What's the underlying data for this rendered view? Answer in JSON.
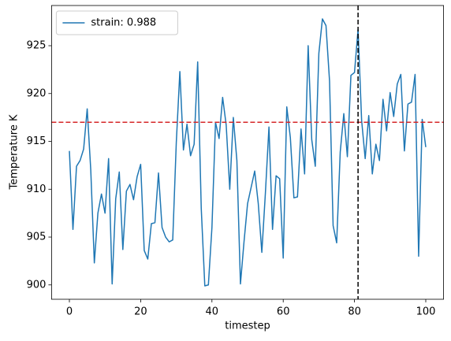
{
  "chart_data": {
    "type": "line",
    "xlabel": "timestep",
    "ylabel": "Temperature K",
    "x": [
      0,
      1,
      2,
      3,
      4,
      5,
      6,
      7,
      8,
      9,
      10,
      11,
      12,
      13,
      14,
      15,
      16,
      17,
      18,
      19,
      20,
      21,
      22,
      23,
      24,
      25,
      26,
      27,
      28,
      29,
      30,
      31,
      32,
      33,
      34,
      35,
      36,
      37,
      38,
      39,
      40,
      41,
      42,
      43,
      44,
      45,
      46,
      47,
      48,
      49,
      50,
      51,
      52,
      53,
      54,
      55,
      56,
      57,
      58,
      59,
      60,
      61,
      62,
      63,
      64,
      65,
      66,
      67,
      68,
      69,
      70,
      71,
      72,
      73,
      74,
      75,
      76,
      77,
      78,
      79,
      80,
      81,
      82,
      83,
      84,
      85,
      86,
      87,
      88,
      89,
      90,
      91,
      92,
      93,
      94,
      95,
      96,
      97,
      98,
      99,
      100
    ],
    "series": [
      {
        "name": "strain: 0.988",
        "color": "#1f77b4",
        "values": [
          914,
          905.8,
          912.4,
          913,
          914.2,
          918.4,
          912,
          902.3,
          907.5,
          909.5,
          907.5,
          913.2,
          900.1,
          909,
          911.8,
          903.7,
          909.8,
          910.5,
          908.9,
          911.3,
          912.6,
          903.6,
          902.7,
          906.4,
          906.5,
          911.7,
          906,
          905,
          904.5,
          904.7,
          914.9,
          922.3,
          914.1,
          916.8,
          913.5,
          914.7,
          923.3,
          908,
          899.9,
          900,
          906,
          917,
          915.3,
          919.6,
          916.7,
          910,
          917.5,
          913,
          900.1,
          904.5,
          908.5,
          910.2,
          911.9,
          908.5,
          903.4,
          909.6,
          916.5,
          905.8,
          911.4,
          911.1,
          902.8,
          918.6,
          915.4,
          909.1,
          909.2,
          916.3,
          911.6,
          925,
          915.2,
          912.4,
          924.2,
          927.8,
          927.1,
          921.3,
          906.2,
          904.4,
          913.9,
          917.9,
          913.4,
          921.9,
          922.2,
          926.7,
          917.2,
          913.2,
          917.7,
          911.6,
          914.7,
          913,
          919.4,
          916.1,
          920.1,
          917.6,
          921,
          922,
          914,
          918.9,
          919.1,
          922,
          903,
          917.3,
          914.4
        ]
      }
    ],
    "hline": {
      "value": 917,
      "color": "#d62728"
    },
    "vline": {
      "value": 81,
      "color": "#000000"
    },
    "xlim": [
      -5,
      105
    ],
    "xticks": [
      0,
      20,
      40,
      60,
      80,
      100
    ],
    "ylim": [
      898.5,
      929.2
    ],
    "yticks": [
      900,
      905,
      910,
      915,
      920,
      925
    ],
    "legend": "upper left",
    "grid": false
  }
}
